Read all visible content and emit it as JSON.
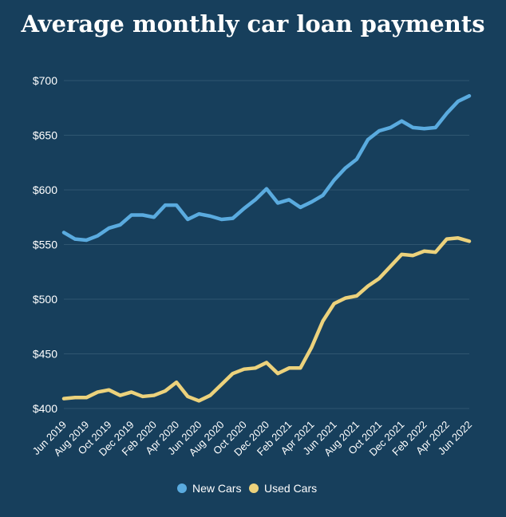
{
  "chart_data": {
    "type": "line",
    "title": "Average monthly car loan payments",
    "xlabel": "",
    "ylabel": "",
    "ylim": [
      400,
      700
    ],
    "yticks": [
      400,
      450,
      500,
      550,
      600,
      650,
      700
    ],
    "ytick_labels": [
      "$400",
      "$450",
      "$500",
      "$550",
      "$600",
      "$650",
      "$700"
    ],
    "grid": true,
    "legend": "bottom",
    "x": [
      "Jun 2019",
      "Jul 2019",
      "Aug 2019",
      "Sep 2019",
      "Oct 2019",
      "Nov 2019",
      "Dec 2019",
      "Jan 2020",
      "Feb 2020",
      "Mar 2020",
      "Apr 2020",
      "May 2020",
      "Jun 2020",
      "Jul 2020",
      "Aug 2020",
      "Sep 2020",
      "Oct 2020",
      "Nov 2020",
      "Dec 2020",
      "Jan 2021",
      "Feb 2021",
      "Mar 2021",
      "Apr 2021",
      "May 2021",
      "Jun 2021",
      "Jul 2021",
      "Aug 2021",
      "Sep 2021",
      "Oct 2021",
      "Nov 2021",
      "Dec 2021",
      "Jan 2022",
      "Feb 2022",
      "Mar 2022",
      "Apr 2022",
      "May 2022",
      "Jun 2022"
    ],
    "xtick_labels": [
      "Jun 2019",
      "Aug 2019",
      "Oct 2019",
      "Dec 2019",
      "Feb 2020",
      "Apr 2020",
      "Jun 2020",
      "Aug 2020",
      "Oct 2020",
      "Dec 2020",
      "Feb 2021",
      "Apr 2021",
      "Jun 2021",
      "Aug 2021",
      "Oct 2021",
      "Dec 2021",
      "Feb 2022",
      "Apr 2022",
      "Jun 2022"
    ],
    "series": [
      {
        "name": "New Cars",
        "color": "#5aabdf",
        "values": [
          561,
          555,
          554,
          558,
          565,
          568,
          577,
          577,
          575,
          586,
          586,
          573,
          578,
          576,
          573,
          574,
          583,
          591,
          601,
          588,
          591,
          584,
          589,
          595,
          609,
          620,
          628,
          646,
          654,
          657,
          663,
          657,
          656,
          657,
          670,
          681,
          686
        ]
      },
      {
        "name": "Used Cars",
        "color": "#ecd27c",
        "values": [
          409,
          410,
          410,
          415,
          417,
          412,
          415,
          411,
          412,
          416,
          424,
          411,
          407,
          412,
          422,
          432,
          436,
          437,
          442,
          432,
          437,
          437,
          456,
          480,
          496,
          501,
          503,
          512,
          519,
          530,
          541,
          540,
          544,
          543,
          555,
          556,
          553
        ]
      }
    ]
  }
}
